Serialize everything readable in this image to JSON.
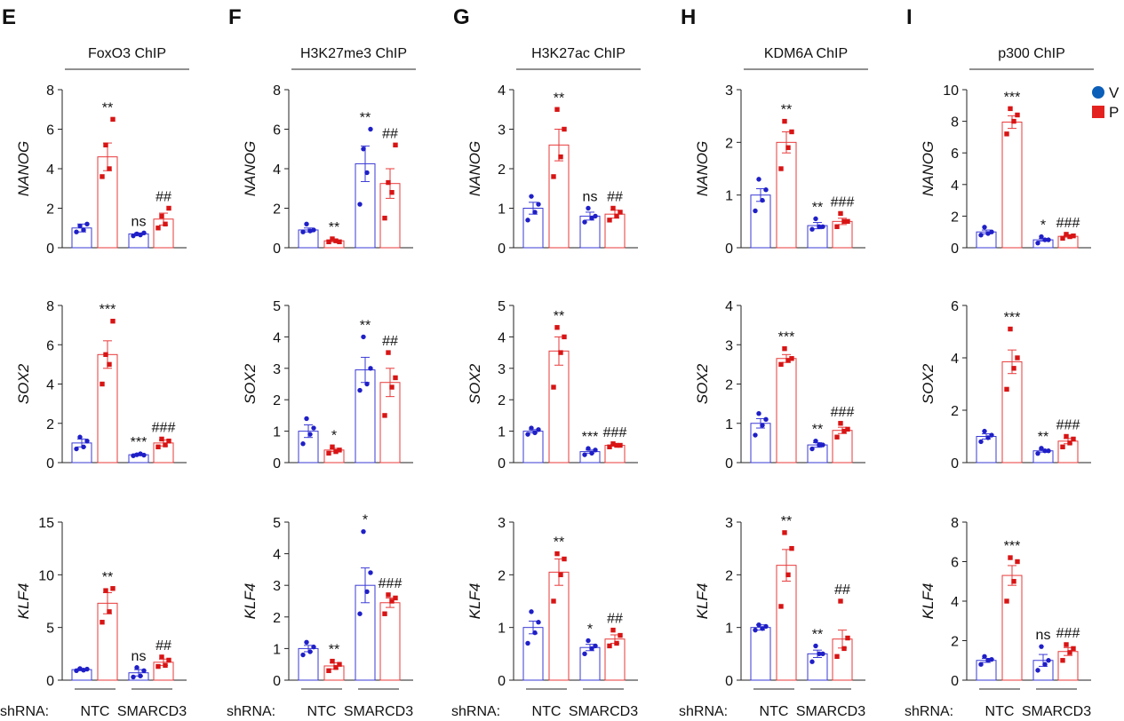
{
  "figure": {
    "x_labels": {
      "prefix": "shRNA:",
      "group1": "NTC",
      "group2": "SMARCD3"
    },
    "legend": [
      {
        "label": "V",
        "color": "#0b5fb8",
        "shape": "circle"
      },
      {
        "label": "P",
        "color": "#e3221f",
        "shape": "square"
      }
    ],
    "colors": {
      "V_bar": "#3a3ad6",
      "V_dot": "#1f1fc8",
      "P_bar": "#e8393a",
      "P_dot": "#d81414",
      "sig": "#111111"
    }
  },
  "chart_data": [
    {
      "panel": "E",
      "title": "FoxO3 ChIP",
      "type": "bar",
      "rows": [
        {
          "ylabel": "NANOG",
          "ylim": [
            0,
            8
          ],
          "ticks": [
            0,
            2,
            4,
            6,
            8
          ],
          "means": [
            1.0,
            4.6,
            0.7,
            1.45
          ],
          "errors": [
            0.2,
            0.7,
            0.05,
            0.3
          ],
          "points": [
            [
              0.8,
              1.1,
              0.9,
              1.2
            ],
            [
              3.6,
              5.2,
              4.0,
              6.5
            ],
            [
              0.6,
              0.7,
              0.65,
              0.75
            ],
            [
              1.0,
              1.6,
              1.2,
              2.0
            ]
          ],
          "sig": [
            "",
            "**",
            "ns",
            "##"
          ]
        },
        {
          "ylabel": "SOX2",
          "ylim": [
            0,
            8
          ],
          "ticks": [
            0,
            2,
            4,
            6,
            8
          ],
          "means": [
            1.0,
            5.5,
            0.4,
            1.0
          ],
          "errors": [
            0.2,
            0.7,
            0.05,
            0.15
          ],
          "points": [
            [
              0.7,
              1.3,
              0.8,
              1.1
            ],
            [
              4.0,
              5.5,
              5.0,
              7.2
            ],
            [
              0.35,
              0.4,
              0.45,
              0.38
            ],
            [
              0.8,
              1.2,
              0.9,
              1.1
            ]
          ],
          "sig": [
            "",
            "***",
            "***",
            "###"
          ]
        },
        {
          "ylabel": "KLF4",
          "ylim": [
            0,
            15
          ],
          "ticks": [
            0,
            5,
            10,
            15
          ],
          "means": [
            1.0,
            7.3,
            0.7,
            1.7
          ],
          "errors": [
            0.1,
            1.0,
            0.3,
            0.3
          ],
          "points": [
            [
              0.9,
              1.1,
              0.95,
              1.05
            ],
            [
              5.5,
              8.5,
              6.5,
              8.7
            ],
            [
              0.3,
              1.2,
              0.4,
              0.9
            ],
            [
              1.3,
              2.2,
              1.4,
              1.9
            ]
          ],
          "sig": [
            "",
            "**",
            "ns",
            "##"
          ]
        }
      ]
    },
    {
      "panel": "F",
      "title": "H3K27me3 ChIP",
      "type": "bar",
      "rows": [
        {
          "ylabel": "NANOG",
          "ylim": [
            0,
            8
          ],
          "ticks": [
            0,
            2,
            4,
            6,
            8
          ],
          "means": [
            0.9,
            0.35,
            4.25,
            3.25
          ],
          "errors": [
            0.1,
            0.05,
            0.9,
            0.75
          ],
          "points": [
            [
              0.8,
              1.2,
              0.85,
              0.9
            ],
            [
              0.3,
              0.45,
              0.35,
              0.3
            ],
            [
              2.2,
              5.0,
              3.8,
              6.0
            ],
            [
              1.5,
              3.3,
              2.8,
              5.2
            ]
          ],
          "sig": [
            "",
            "**",
            "**",
            "##"
          ]
        },
        {
          "ylabel": "SOX2",
          "ylim": [
            0,
            5
          ],
          "ticks": [
            0,
            1,
            2,
            3,
            4,
            5
          ],
          "means": [
            1.0,
            0.4,
            2.95,
            2.55
          ],
          "errors": [
            0.2,
            0.05,
            0.4,
            0.45
          ],
          "points": [
            [
              0.6,
              1.4,
              0.9,
              1.1
            ],
            [
              0.3,
              0.5,
              0.35,
              0.4
            ],
            [
              2.3,
              4.0,
              2.5,
              3.0
            ],
            [
              1.5,
              3.5,
              2.4,
              2.7
            ]
          ],
          "sig": [
            "",
            "*",
            "**",
            "##"
          ]
        },
        {
          "ylabel": "KLF4",
          "ylim": [
            0,
            5
          ],
          "ticks": [
            0,
            1,
            2,
            3,
            4,
            5
          ],
          "means": [
            1.0,
            0.45,
            3.0,
            2.45
          ],
          "errors": [
            0.1,
            0.1,
            0.55,
            0.15
          ],
          "points": [
            [
              0.8,
              1.2,
              0.9,
              1.05
            ],
            [
              0.3,
              0.6,
              0.4,
              0.5
            ],
            [
              2.1,
              4.7,
              2.8,
              3.4
            ],
            [
              2.1,
              2.7,
              2.5,
              2.6
            ]
          ],
          "sig": [
            "",
            "**",
            "*",
            "###"
          ]
        }
      ]
    },
    {
      "panel": "G",
      "title": "H3K27ac ChIP",
      "type": "bar",
      "rows": [
        {
          "ylabel": "NANOG",
          "ylim": [
            0,
            4
          ],
          "ticks": [
            0,
            1,
            2,
            3,
            4
          ],
          "means": [
            1.0,
            2.6,
            0.8,
            0.85
          ],
          "errors": [
            0.15,
            0.4,
            0.1,
            0.1
          ],
          "points": [
            [
              0.7,
              1.3,
              0.9,
              1.1
            ],
            [
              1.8,
              3.5,
              2.3,
              3.0
            ],
            [
              0.65,
              1.0,
              0.75,
              0.8
            ],
            [
              0.7,
              1.0,
              0.8,
              0.9
            ]
          ],
          "sig": [
            "",
            "**",
            "ns",
            "##"
          ]
        },
        {
          "ylabel": "SOX2",
          "ylim": [
            0,
            5
          ],
          "ticks": [
            0,
            1,
            2,
            3,
            4,
            5
          ],
          "means": [
            1.0,
            3.55,
            0.35,
            0.55
          ],
          "errors": [
            0.05,
            0.45,
            0.05,
            0.03
          ],
          "points": [
            [
              0.9,
              1.1,
              0.95,
              1.05
            ],
            [
              2.4,
              4.3,
              3.5,
              4.0
            ],
            [
              0.25,
              0.45,
              0.3,
              0.4
            ],
            [
              0.5,
              0.6,
              0.55,
              0.55
            ]
          ],
          "sig": [
            "",
            "**",
            "***",
            "###"
          ]
        },
        {
          "ylabel": "KLF4",
          "ylim": [
            0,
            3
          ],
          "ticks": [
            0,
            1,
            2,
            3
          ],
          "means": [
            1.0,
            2.05,
            0.62,
            0.78
          ],
          "errors": [
            0.12,
            0.25,
            0.06,
            0.08
          ],
          "points": [
            [
              0.7,
              1.3,
              0.9,
              1.1
            ],
            [
              1.5,
              2.4,
              2.0,
              2.3
            ],
            [
              0.5,
              0.75,
              0.6,
              0.65
            ],
            [
              0.65,
              0.95,
              0.7,
              0.85
            ]
          ],
          "sig": [
            "",
            "**",
            "*",
            "##"
          ]
        }
      ]
    },
    {
      "panel": "H",
      "title": "KDM6A ChIP",
      "type": "bar",
      "rows": [
        {
          "ylabel": "NANOG",
          "ylim": [
            0,
            3
          ],
          "ticks": [
            0,
            1,
            2,
            3
          ],
          "means": [
            1.0,
            2.0,
            0.42,
            0.5
          ],
          "errors": [
            0.12,
            0.2,
            0.06,
            0.06
          ],
          "points": [
            [
              0.7,
              1.3,
              0.9,
              1.1
            ],
            [
              1.5,
              2.4,
              1.9,
              2.2
            ],
            [
              0.35,
              0.55,
              0.4,
              0.4
            ],
            [
              0.4,
              0.65,
              0.5,
              0.5
            ]
          ],
          "sig": [
            "",
            "**",
            "**",
            "###"
          ]
        },
        {
          "ylabel": "SOX2",
          "ylim": [
            0,
            4
          ],
          "ticks": [
            0,
            1,
            2,
            3,
            4
          ],
          "means": [
            1.0,
            2.65,
            0.45,
            0.82
          ],
          "errors": [
            0.12,
            0.1,
            0.06,
            0.08
          ],
          "points": [
            [
              0.7,
              1.25,
              0.95,
              1.1
            ],
            [
              2.5,
              2.9,
              2.6,
              2.65
            ],
            [
              0.35,
              0.55,
              0.45,
              0.45
            ],
            [
              0.65,
              1.0,
              0.8,
              0.85
            ]
          ],
          "sig": [
            "",
            "***",
            "**",
            "###"
          ]
        },
        {
          "ylabel": "KLF4",
          "ylim": [
            0,
            3
          ],
          "ticks": [
            0,
            1,
            2,
            3
          ],
          "means": [
            1.0,
            2.18,
            0.5,
            0.78
          ],
          "errors": [
            0.05,
            0.3,
            0.07,
            0.17
          ],
          "points": [
            [
              0.95,
              1.05,
              0.98,
              1.02
            ],
            [
              1.4,
              2.8,
              2.0,
              2.5
            ],
            [
              0.35,
              0.65,
              0.5,
              0.5
            ],
            [
              0.45,
              1.5,
              0.6,
              0.8
            ]
          ],
          "sig": [
            "",
            "**",
            "**",
            "##"
          ]
        }
      ]
    },
    {
      "panel": "I",
      "title": "p300 ChIP",
      "type": "bar",
      "rows": [
        {
          "ylabel": "NANOG",
          "ylim": [
            0,
            10
          ],
          "ticks": [
            0,
            2,
            4,
            6,
            8,
            10
          ],
          "means": [
            1.0,
            7.95,
            0.5,
            0.72
          ],
          "errors": [
            0.12,
            0.4,
            0.08,
            0.05
          ],
          "points": [
            [
              0.8,
              1.3,
              0.9,
              1.0
            ],
            [
              7.2,
              8.8,
              8.0,
              8.4
            ],
            [
              0.3,
              0.7,
              0.5,
              0.5
            ],
            [
              0.6,
              0.85,
              0.7,
              0.75
            ]
          ],
          "sig": [
            "",
            "***",
            "*",
            "###"
          ]
        },
        {
          "ylabel": "SOX2",
          "ylim": [
            0,
            6
          ],
          "ticks": [
            0,
            2,
            4,
            6
          ],
          "means": [
            1.0,
            3.85,
            0.45,
            0.82
          ],
          "errors": [
            0.1,
            0.45,
            0.05,
            0.1
          ],
          "points": [
            [
              0.8,
              1.2,
              0.95,
              1.05
            ],
            [
              2.8,
              5.1,
              3.6,
              4.0
            ],
            [
              0.35,
              0.55,
              0.45,
              0.45
            ],
            [
              0.6,
              1.0,
              0.75,
              0.9
            ]
          ],
          "sig": [
            "",
            "***",
            "**",
            "###"
          ]
        },
        {
          "ylabel": "KLF4",
          "ylim": [
            0,
            8
          ],
          "ticks": [
            0,
            2,
            4,
            6,
            8
          ],
          "means": [
            1.0,
            5.3,
            1.0,
            1.45
          ],
          "errors": [
            0.1,
            0.5,
            0.3,
            0.2
          ],
          "points": [
            [
              0.8,
              1.2,
              1.0,
              1.05
            ],
            [
              4.0,
              6.2,
              5.0,
              6.0
            ],
            [
              0.5,
              1.7,
              0.8,
              1.0
            ],
            [
              1.0,
              1.8,
              1.4,
              1.6
            ]
          ],
          "sig": [
            "",
            "***",
            "ns",
            "###"
          ]
        }
      ]
    }
  ]
}
